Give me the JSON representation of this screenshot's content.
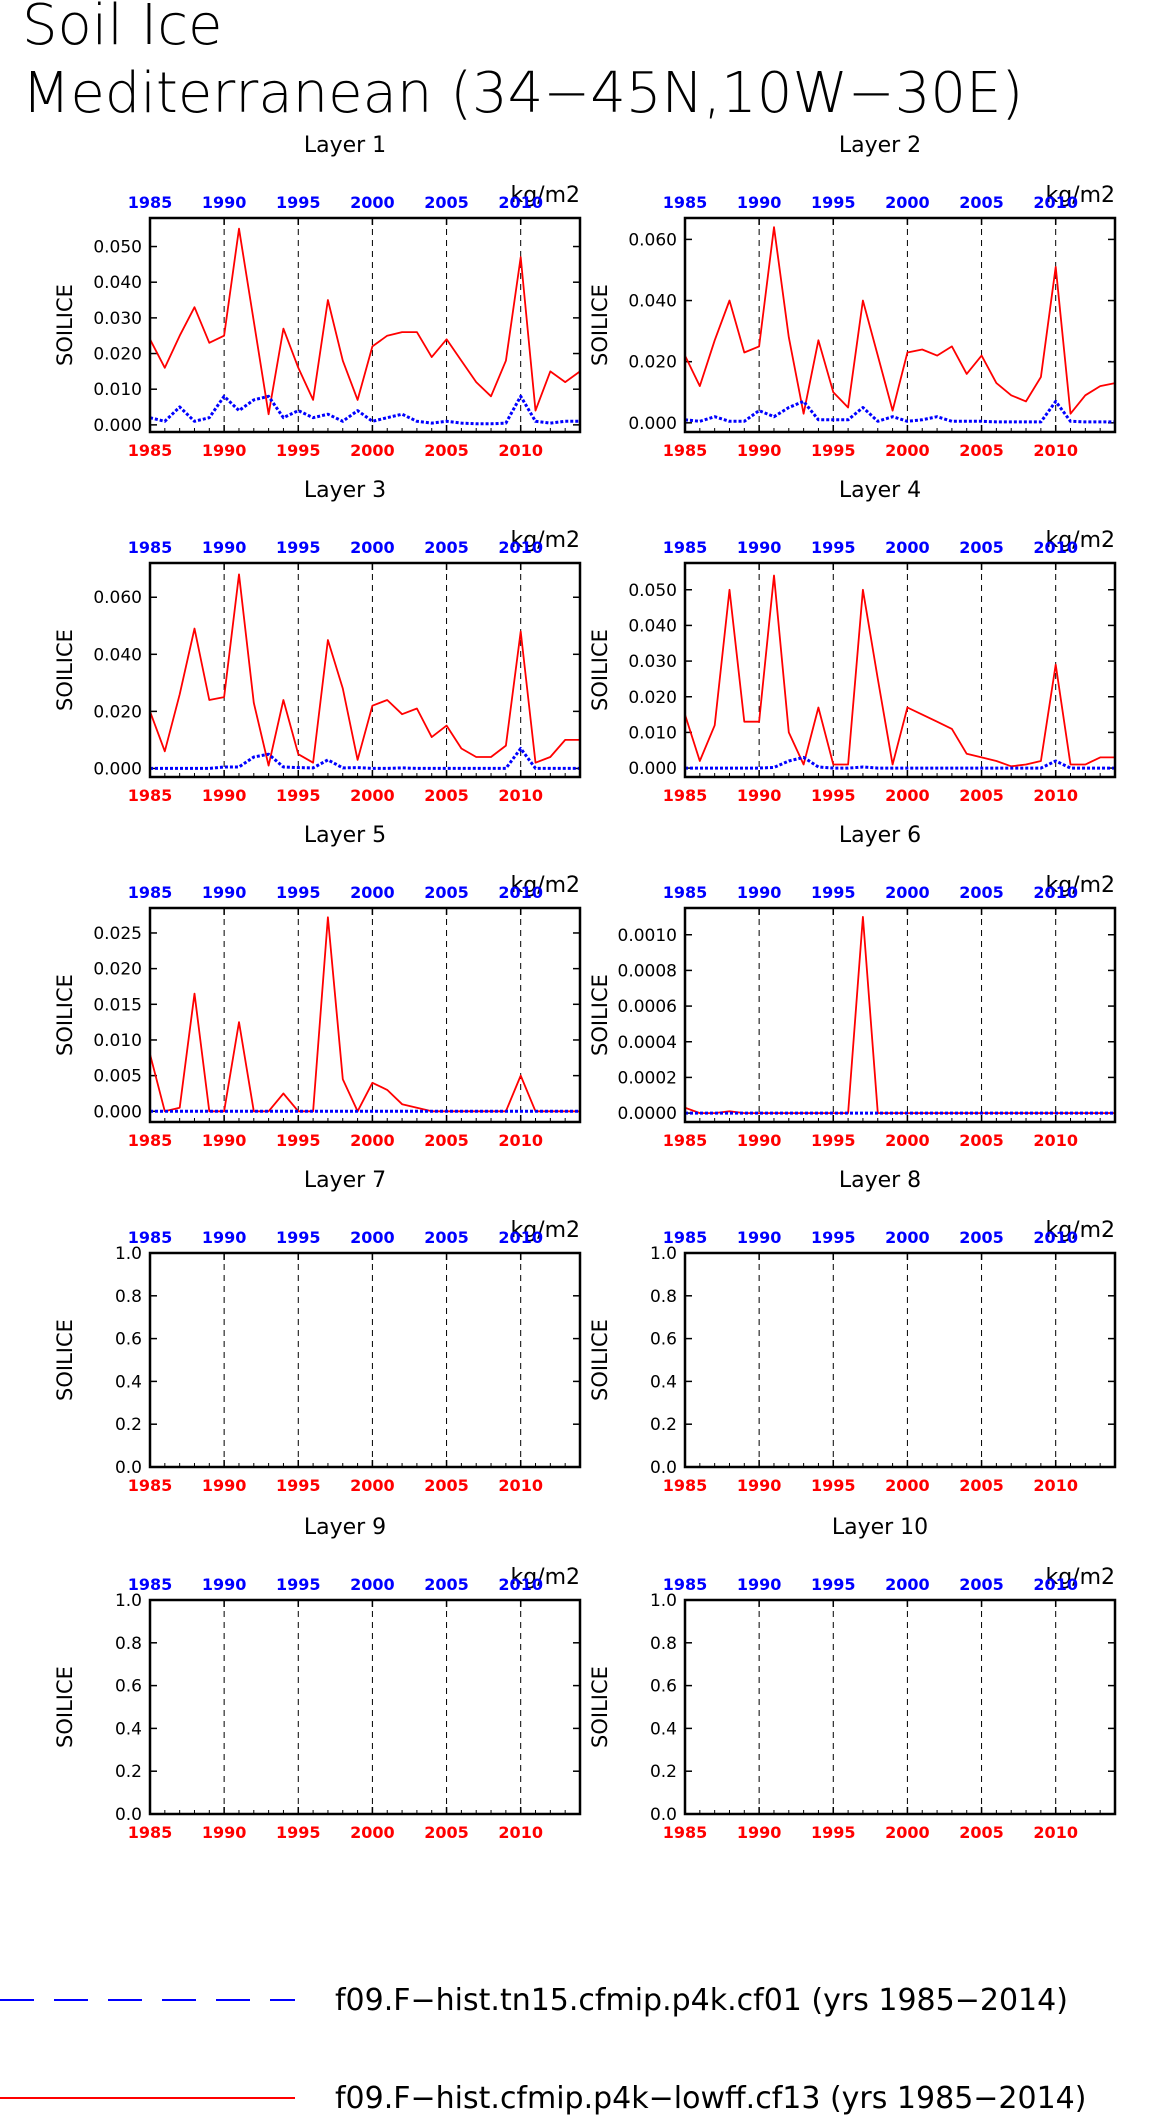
{
  "header": {
    "title_line1": "Soil Ice",
    "title_line2": "Mediterranean (34−45N,10W−30E)"
  },
  "legend": {
    "entries": [
      {
        "label": "f09.F−hist.tn15.cfmip.p4k.cf01 (yrs 1985−2014)",
        "color": "#0000ff",
        "style": "dashed"
      },
      {
        "label": "f09.F−hist.cfmip.p4k−lowff.cf13 (yrs 1985−2014)",
        "color": "#ff0000",
        "style": "solid"
      }
    ]
  },
  "colors": {
    "series_blue": "#0000ff",
    "series_red": "#ff0000",
    "axis": "#000000"
  },
  "chart_data": [
    {
      "type": "line",
      "title": "Layer 1",
      "units": "kg/m2",
      "ylabel": "SOILICE",
      "xlim": [
        1985,
        2014
      ],
      "ylim": [
        -0.002,
        0.058
      ],
      "yticks": [
        0.0,
        0.01,
        0.02,
        0.03,
        0.04,
        0.05
      ],
      "ytick_labels": [
        "0.000",
        "0.010",
        "0.020",
        "0.030",
        "0.040",
        "0.050"
      ],
      "xticks": [
        1985,
        1990,
        1995,
        2000,
        2005,
        2010
      ],
      "xtick_labels": [
        "1985",
        "1990",
        "1995",
        "2000",
        "2005",
        "2010"
      ],
      "vlines": [
        1990,
        1995,
        2000,
        2005,
        2010
      ],
      "x": [
        1985,
        1986,
        1987,
        1988,
        1989,
        1990,
        1991,
        1992,
        1993,
        1994,
        1995,
        1996,
        1997,
        1998,
        1999,
        2000,
        2001,
        2002,
        2003,
        2004,
        2005,
        2006,
        2007,
        2008,
        2009,
        2010,
        2011,
        2012,
        2013,
        2014
      ],
      "series": [
        {
          "color": "#ff0000",
          "values": [
            0.024,
            0.016,
            0.025,
            0.033,
            0.023,
            0.025,
            0.055,
            0.029,
            0.003,
            0.027,
            0.016,
            0.007,
            0.035,
            0.018,
            0.007,
            0.022,
            0.025,
            0.026,
            0.026,
            0.019,
            0.024,
            0.018,
            0.012,
            0.008,
            0.018,
            0.047,
            0.004,
            0.015,
            0.012,
            0.015
          ]
        },
        {
          "color": "#0000ff",
          "values": [
            0.002,
            0.001,
            0.005,
            0.001,
            0.002,
            0.008,
            0.004,
            0.007,
            0.008,
            0.002,
            0.004,
            0.002,
            0.003,
            0.001,
            0.004,
            0.001,
            0.002,
            0.003,
            0.001,
            0.0005,
            0.001,
            0.0005,
            0.0003,
            0.0003,
            0.0005,
            0.008,
            0.001,
            0.0005,
            0.001,
            0.001
          ]
        }
      ]
    },
    {
      "type": "line",
      "title": "Layer 2",
      "units": "kg/m2",
      "ylabel": "SOILICE",
      "xlim": [
        1985,
        2014
      ],
      "ylim": [
        -0.003,
        0.067
      ],
      "yticks": [
        0.0,
        0.02,
        0.04,
        0.06
      ],
      "ytick_labels": [
        "0.000",
        "0.020",
        "0.040",
        "0.060"
      ],
      "xticks": [
        1985,
        1990,
        1995,
        2000,
        2005,
        2010
      ],
      "xtick_labels": [
        "1985",
        "1990",
        "1995",
        "2000",
        "2005",
        "2010"
      ],
      "vlines": [
        1990,
        1995,
        2000,
        2005,
        2010
      ],
      "x": [
        1985,
        1986,
        1987,
        1988,
        1989,
        1990,
        1991,
        1992,
        1993,
        1994,
        1995,
        1996,
        1997,
        1998,
        1999,
        2000,
        2001,
        2002,
        2003,
        2004,
        2005,
        2006,
        2007,
        2008,
        2009,
        2010,
        2011,
        2012,
        2013,
        2014
      ],
      "series": [
        {
          "color": "#ff0000",
          "values": [
            0.022,
            0.012,
            0.027,
            0.04,
            0.023,
            0.025,
            0.064,
            0.028,
            0.003,
            0.027,
            0.01,
            0.005,
            0.04,
            0.022,
            0.004,
            0.023,
            0.024,
            0.022,
            0.025,
            0.016,
            0.022,
            0.013,
            0.009,
            0.007,
            0.015,
            0.051,
            0.003,
            0.009,
            0.012,
            0.013
          ]
        },
        {
          "color": "#0000ff",
          "values": [
            0.001,
            0.0005,
            0.002,
            0.0005,
            0.0005,
            0.004,
            0.002,
            0.005,
            0.007,
            0.001,
            0.001,
            0.001,
            0.005,
            0.0005,
            0.002,
            0.0005,
            0.001,
            0.002,
            0.0005,
            0.0005,
            0.0005,
            0.0003,
            0.0003,
            0.0003,
            0.0003,
            0.007,
            0.0005,
            0.0003,
            0.0003,
            0.0003
          ]
        }
      ]
    },
    {
      "type": "line",
      "title": "Layer 3",
      "units": "kg/m2",
      "ylabel": "SOILICE",
      "xlim": [
        1985,
        2014
      ],
      "ylim": [
        -0.003,
        0.072
      ],
      "yticks": [
        0.0,
        0.02,
        0.04,
        0.06
      ],
      "ytick_labels": [
        "0.000",
        "0.020",
        "0.040",
        "0.060"
      ],
      "xticks": [
        1985,
        1990,
        1995,
        2000,
        2005,
        2010
      ],
      "xtick_labels": [
        "1985",
        "1990",
        "1995",
        "2000",
        "2005",
        "2010"
      ],
      "vlines": [
        1990,
        1995,
        2000,
        2005,
        2010
      ],
      "x": [
        1985,
        1986,
        1987,
        1988,
        1989,
        1990,
        1991,
        1992,
        1993,
        1994,
        1995,
        1996,
        1997,
        1998,
        1999,
        2000,
        2001,
        2002,
        2003,
        2004,
        2005,
        2006,
        2007,
        2008,
        2009,
        2010,
        2011,
        2012,
        2013,
        2014
      ],
      "series": [
        {
          "color": "#ff0000",
          "values": [
            0.02,
            0.006,
            0.026,
            0.049,
            0.024,
            0.025,
            0.068,
            0.023,
            0.001,
            0.024,
            0.005,
            0.002,
            0.045,
            0.028,
            0.003,
            0.022,
            0.024,
            0.019,
            0.021,
            0.011,
            0.015,
            0.007,
            0.004,
            0.004,
            0.008,
            0.048,
            0.002,
            0.004,
            0.01,
            0.01
          ]
        },
        {
          "color": "#0000ff",
          "values": [
            0.0,
            0.0,
            0.0,
            0.0,
            0.0,
            0.0005,
            0.0005,
            0.004,
            0.005,
            0.0005,
            0.0003,
            0.0002,
            0.003,
            0.0002,
            0.0003,
            0.0,
            0.0,
            0.0002,
            0.0,
            0.0,
            0.0,
            0.0,
            0.0,
            0.0,
            0.0,
            0.007,
            0.0,
            0.0,
            0.0,
            0.0
          ]
        }
      ]
    },
    {
      "type": "line",
      "title": "Layer 4",
      "units": "kg/m2",
      "ylabel": "SOILICE",
      "xlim": [
        1985,
        2014
      ],
      "ylim": [
        -0.0025,
        0.0575
      ],
      "yticks": [
        0.0,
        0.01,
        0.02,
        0.03,
        0.04,
        0.05
      ],
      "ytick_labels": [
        "0.000",
        "0.010",
        "0.020",
        "0.030",
        "0.040",
        "0.050"
      ],
      "xticks": [
        1985,
        1990,
        1995,
        2000,
        2005,
        2010
      ],
      "xtick_labels": [
        "1985",
        "1990",
        "1995",
        "2000",
        "2005",
        "2010"
      ],
      "vlines": [
        1990,
        1995,
        2000,
        2005,
        2010
      ],
      "x": [
        1985,
        1986,
        1987,
        1988,
        1989,
        1990,
        1991,
        1992,
        1993,
        1994,
        1995,
        1996,
        1997,
        1998,
        1999,
        2000,
        2001,
        2002,
        2003,
        2004,
        2005,
        2006,
        2007,
        2008,
        2009,
        2010,
        2011,
        2012,
        2013,
        2014
      ],
      "series": [
        {
          "color": "#ff0000",
          "values": [
            0.015,
            0.002,
            0.012,
            0.05,
            0.013,
            0.013,
            0.054,
            0.01,
            0.001,
            0.017,
            0.001,
            0.001,
            0.05,
            0.025,
            0.001,
            0.017,
            0.015,
            0.013,
            0.011,
            0.004,
            0.003,
            0.002,
            0.0005,
            0.001,
            0.002,
            0.029,
            0.001,
            0.001,
            0.003,
            0.003
          ]
        },
        {
          "color": "#0000ff",
          "values": [
            0.0,
            0.0,
            0.0,
            0.0,
            0.0,
            0.0,
            0.0002,
            0.002,
            0.003,
            0.0003,
            0.0,
            0.0,
            0.0003,
            0.0,
            0.0,
            0.0,
            0.0,
            0.0,
            0.0,
            0.0,
            0.0,
            0.0,
            0.0,
            0.0,
            0.0,
            0.002,
            0.0,
            0.0,
            0.0,
            0.0
          ]
        }
      ]
    },
    {
      "type": "line",
      "title": "Layer 5",
      "units": "kg/m2",
      "ylabel": "SOILICE",
      "xlim": [
        1985,
        2014
      ],
      "ylim": [
        -0.0015,
        0.0285
      ],
      "yticks": [
        0.0,
        0.005,
        0.01,
        0.015,
        0.02,
        0.025
      ],
      "ytick_labels": [
        "0.000",
        "0.005",
        "0.010",
        "0.015",
        "0.020",
        "0.025"
      ],
      "xticks": [
        1985,
        1990,
        1995,
        2000,
        2005,
        2010
      ],
      "xtick_labels": [
        "1985",
        "1990",
        "1995",
        "2000",
        "2005",
        "2010"
      ],
      "vlines": [
        1990,
        1995,
        2000,
        2005,
        2010
      ],
      "x": [
        1985,
        1986,
        1987,
        1988,
        1989,
        1990,
        1991,
        1992,
        1993,
        1994,
        1995,
        1996,
        1997,
        1998,
        1999,
        2000,
        2001,
        2002,
        2003,
        2004,
        2005,
        2006,
        2007,
        2008,
        2009,
        2010,
        2011,
        2012,
        2013,
        2014
      ],
      "series": [
        {
          "color": "#ff0000",
          "values": [
            0.008,
            0.0,
            0.0005,
            0.0165,
            0.0,
            0.0,
            0.0125,
            0.0,
            0.0,
            0.0025,
            0.0,
            0.0,
            0.0272,
            0.0045,
            0.0,
            0.004,
            0.003,
            0.001,
            0.0005,
            0.0,
            0.0,
            0.0,
            0.0,
            0.0,
            0.0,
            0.005,
            0.0,
            0.0,
            0.0,
            0.0
          ]
        },
        {
          "color": "#0000ff",
          "values": [
            0.0,
            0.0,
            0.0,
            0.0,
            0.0,
            0.0,
            0.0,
            0.0,
            0.0,
            0.0,
            0.0,
            0.0,
            0.0,
            0.0,
            0.0,
            0.0,
            0.0,
            0.0,
            0.0,
            0.0,
            0.0,
            0.0,
            0.0,
            0.0,
            0.0,
            0.0,
            0.0,
            0.0,
            0.0,
            0.0
          ]
        }
      ]
    },
    {
      "type": "line",
      "title": "Layer 6",
      "units": "kg/m2",
      "ylabel": "SOILICE",
      "xlim": [
        1985,
        2014
      ],
      "ylim": [
        -5e-05,
        0.00115
      ],
      "yticks": [
        0.0,
        0.0002,
        0.0004,
        0.0006,
        0.0008,
        0.001
      ],
      "ytick_labels": [
        "0.0000",
        "0.0002",
        "0.0004",
        "0.0006",
        "0.0008",
        "0.0010"
      ],
      "xticks": [
        1985,
        1990,
        1995,
        2000,
        2005,
        2010
      ],
      "xtick_labels": [
        "1985",
        "1990",
        "1995",
        "2000",
        "2005",
        "2010"
      ],
      "vlines": [
        1990,
        1995,
        2000,
        2005,
        2010
      ],
      "x": [
        1985,
        1986,
        1987,
        1988,
        1989,
        1990,
        1991,
        1992,
        1993,
        1994,
        1995,
        1996,
        1997,
        1998,
        1999,
        2000,
        2001,
        2002,
        2003,
        2004,
        2005,
        2006,
        2007,
        2008,
        2009,
        2010,
        2011,
        2012,
        2013,
        2014
      ],
      "series": [
        {
          "color": "#ff0000",
          "values": [
            3e-05,
            0.0,
            0.0,
            1e-05,
            0.0,
            0.0,
            0.0,
            0.0,
            0.0,
            0.0,
            0.0,
            0.0,
            0.0011,
            0.0,
            0.0,
            0.0,
            0.0,
            0.0,
            0.0,
            0.0,
            0.0,
            0.0,
            0.0,
            0.0,
            0.0,
            0.0,
            0.0,
            0.0,
            0.0,
            0.0
          ]
        },
        {
          "color": "#0000ff",
          "values": [
            0.0,
            0.0,
            0.0,
            0.0,
            0.0,
            0.0,
            0.0,
            0.0,
            0.0,
            0.0,
            0.0,
            0.0,
            0.0,
            0.0,
            0.0,
            0.0,
            0.0,
            0.0,
            0.0,
            0.0,
            0.0,
            0.0,
            0.0,
            0.0,
            0.0,
            0.0,
            0.0,
            0.0,
            0.0,
            0.0
          ]
        }
      ]
    },
    {
      "type": "line",
      "title": "Layer 7",
      "units": "kg/m2",
      "ylabel": "SOILICE",
      "xlim": [
        1985,
        2014
      ],
      "ylim": [
        0.0,
        1.0
      ],
      "yticks": [
        0.0,
        0.2,
        0.4,
        0.6,
        0.8,
        1.0
      ],
      "ytick_labels": [
        "0.0",
        "0.2",
        "0.4",
        "0.6",
        "0.8",
        "1.0"
      ],
      "xticks": [
        1985,
        1990,
        1995,
        2000,
        2005,
        2010
      ],
      "xtick_labels": [
        "1985",
        "1990",
        "1995",
        "2000",
        "2005",
        "2010"
      ],
      "vlines": [
        1990,
        1995,
        2000,
        2005,
        2010
      ],
      "x": [],
      "series": []
    },
    {
      "type": "line",
      "title": "Layer 8",
      "units": "kg/m2",
      "ylabel": "SOILICE",
      "xlim": [
        1985,
        2014
      ],
      "ylim": [
        0.0,
        1.0
      ],
      "yticks": [
        0.0,
        0.2,
        0.4,
        0.6,
        0.8,
        1.0
      ],
      "ytick_labels": [
        "0.0",
        "0.2",
        "0.4",
        "0.6",
        "0.8",
        "1.0"
      ],
      "xticks": [
        1985,
        1990,
        1995,
        2000,
        2005,
        2010
      ],
      "xtick_labels": [
        "1985",
        "1990",
        "1995",
        "2000",
        "2005",
        "2010"
      ],
      "vlines": [
        1990,
        1995,
        2000,
        2005,
        2010
      ],
      "x": [],
      "series": []
    },
    {
      "type": "line",
      "title": "Layer 9",
      "units": "kg/m2",
      "ylabel": "SOILICE",
      "xlim": [
        1985,
        2014
      ],
      "ylim": [
        0.0,
        1.0
      ],
      "yticks": [
        0.0,
        0.2,
        0.4,
        0.6,
        0.8,
        1.0
      ],
      "ytick_labels": [
        "0.0",
        "0.2",
        "0.4",
        "0.6",
        "0.8",
        "1.0"
      ],
      "xticks": [
        1985,
        1990,
        1995,
        2000,
        2005,
        2010
      ],
      "xtick_labels": [
        "1985",
        "1990",
        "1995",
        "2000",
        "2005",
        "2010"
      ],
      "vlines": [
        1990,
        1995,
        2000,
        2005,
        2010
      ],
      "x": [],
      "series": []
    },
    {
      "type": "line",
      "title": "Layer 10",
      "units": "kg/m2",
      "ylabel": "SOILICE",
      "xlim": [
        1985,
        2014
      ],
      "ylim": [
        0.0,
        1.0
      ],
      "yticks": [
        0.0,
        0.2,
        0.4,
        0.6,
        0.8,
        1.0
      ],
      "ytick_labels": [
        "0.0",
        "0.2",
        "0.4",
        "0.6",
        "0.8",
        "1.0"
      ],
      "xticks": [
        1985,
        1990,
        1995,
        2000,
        2005,
        2010
      ],
      "xtick_labels": [
        "1985",
        "1990",
        "1995",
        "2000",
        "2005",
        "2010"
      ],
      "vlines": [
        1990,
        1995,
        2000,
        2005,
        2010
      ],
      "x": [],
      "series": []
    }
  ]
}
